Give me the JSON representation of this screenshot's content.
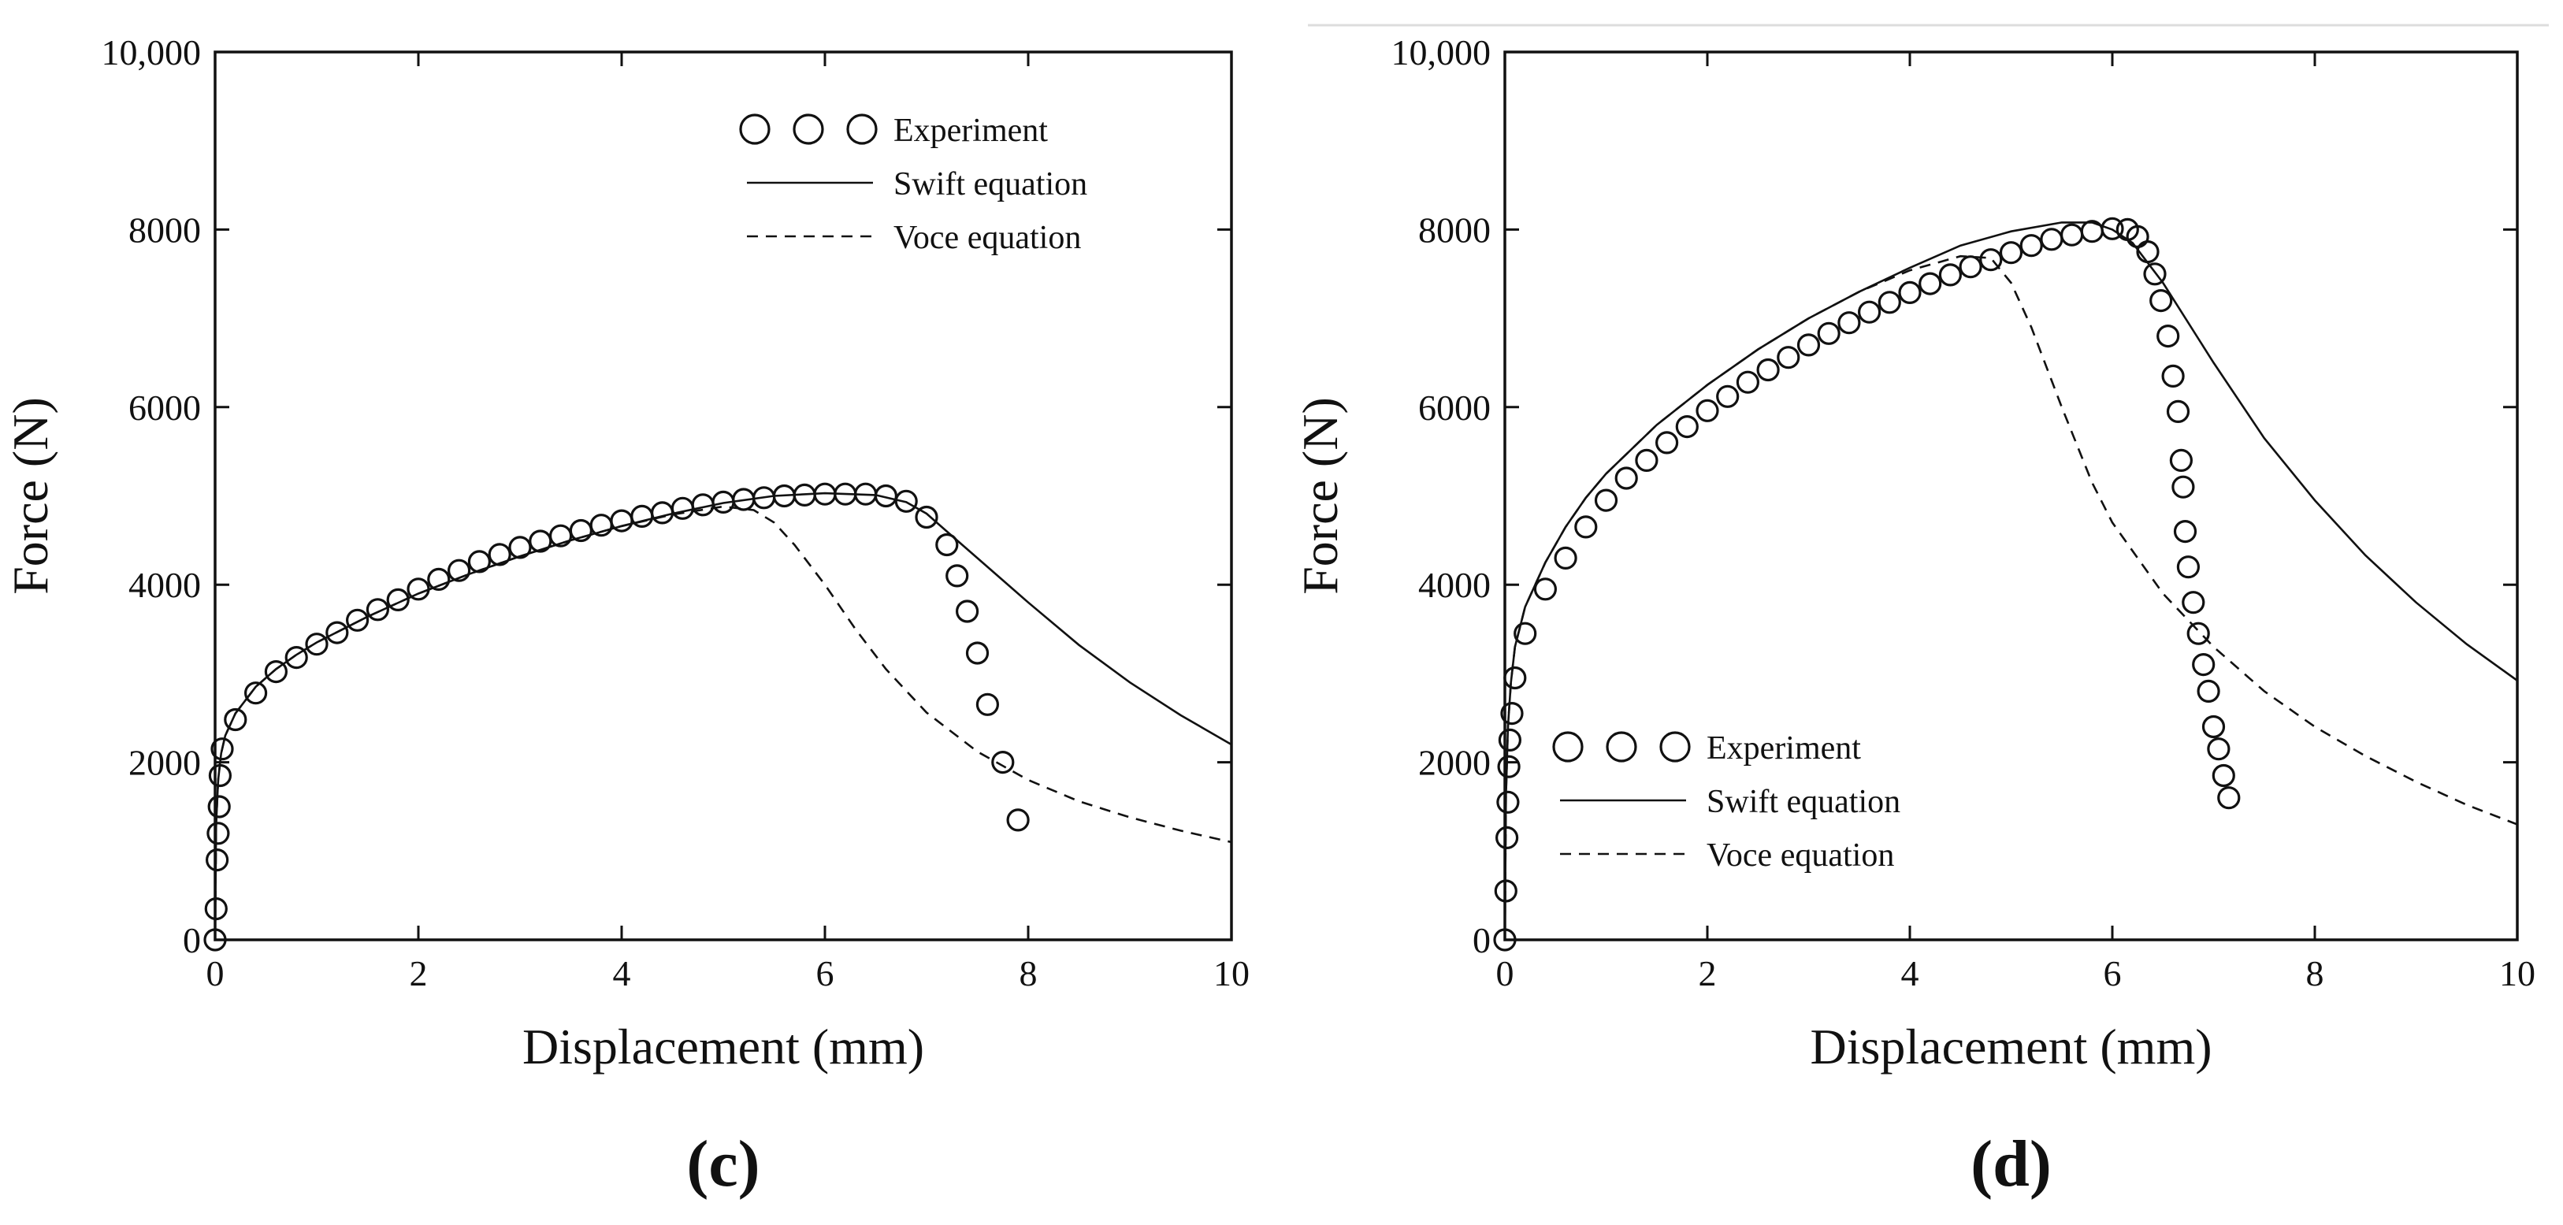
{
  "chart_data": [
    {
      "type": "line",
      "panel_label": "(c)",
      "xlabel": "Displacement (mm)",
      "ylabel": "Force (N)",
      "xlim": [
        0,
        10
      ],
      "ylim": [
        0,
        10000
      ],
      "x_ticks": [
        0,
        2,
        4,
        6,
        8,
        10
      ],
      "x_tick_labels": [
        "0",
        "2",
        "4",
        "6",
        "8",
        "10"
      ],
      "y_ticks": [
        0,
        2000,
        4000,
        6000,
        8000,
        10000
      ],
      "y_tick_labels": [
        "0",
        "2000",
        "4000",
        "6000",
        "8000",
        "10,000"
      ],
      "grid": false,
      "legend_position": "top-right",
      "series": [
        {
          "name": "Experiment",
          "style": "circles",
          "x": [
            0,
            0.01,
            0.02,
            0.03,
            0.04,
            0.05,
            0.07,
            0.2,
            0.4,
            0.6,
            0.8,
            1.0,
            1.2,
            1.4,
            1.6,
            1.8,
            2.0,
            2.2,
            2.4,
            2.6,
            2.8,
            3.0,
            3.2,
            3.4,
            3.6,
            3.8,
            4.0,
            4.2,
            4.4,
            4.6,
            4.8,
            5.0,
            5.2,
            5.4,
            5.6,
            5.8,
            6.0,
            6.2,
            6.4,
            6.6,
            6.8,
            7.0,
            7.2,
            7.3,
            7.4,
            7.5,
            7.6,
            7.75,
            7.9
          ],
          "y": [
            0,
            350,
            900,
            1200,
            1500,
            1850,
            2150,
            2480,
            2780,
            3020,
            3180,
            3330,
            3460,
            3600,
            3720,
            3830,
            3950,
            4060,
            4160,
            4260,
            4340,
            4420,
            4490,
            4550,
            4610,
            4670,
            4720,
            4770,
            4810,
            4860,
            4900,
            4930,
            4960,
            4980,
            5000,
            5010,
            5020,
            5020,
            5020,
            5000,
            4940,
            4760,
            4450,
            4100,
            3700,
            3230,
            2650,
            2000,
            1350
          ]
        },
        {
          "name": "Swift equation",
          "style": "solid",
          "x": [
            0,
            0.01,
            0.03,
            0.06,
            0.1,
            0.2,
            0.4,
            0.6,
            0.8,
            1.0,
            1.5,
            2.0,
            2.5,
            3.0,
            3.5,
            4.0,
            4.5,
            5.0,
            5.5,
            6.0,
            6.5,
            6.8,
            7.0,
            7.2,
            7.5,
            8.0,
            8.5,
            9.0,
            9.5,
            10.0
          ],
          "y": [
            0,
            1300,
            1800,
            2100,
            2300,
            2550,
            2850,
            3050,
            3210,
            3350,
            3640,
            3900,
            4120,
            4320,
            4500,
            4660,
            4800,
            4920,
            5000,
            5030,
            5010,
            4930,
            4800,
            4600,
            4300,
            3800,
            3320,
            2900,
            2530,
            2200
          ]
        },
        {
          "name": "Voce equation",
          "style": "dashed",
          "x": [
            0,
            0.01,
            0.03,
            0.06,
            0.1,
            0.2,
            0.4,
            0.6,
            0.8,
            1.0,
            1.5,
            2.0,
            2.5,
            3.0,
            3.5,
            4.0,
            4.5,
            5.0,
            5.3,
            5.5,
            5.7,
            6.0,
            6.3,
            6.6,
            7.0,
            7.5,
            8.0,
            8.5,
            9.0,
            9.5,
            10.0
          ],
          "y": [
            0,
            1300,
            1800,
            2100,
            2300,
            2550,
            2850,
            3050,
            3210,
            3350,
            3640,
            3900,
            4120,
            4320,
            4500,
            4660,
            4790,
            4880,
            4840,
            4700,
            4450,
            4000,
            3500,
            3050,
            2560,
            2120,
            1800,
            1560,
            1380,
            1230,
            1100
          ]
        }
      ]
    },
    {
      "type": "line",
      "panel_label": "(d)",
      "xlabel": "Displacement (mm)",
      "ylabel": "Force (N)",
      "xlim": [
        0,
        10
      ],
      "ylim": [
        0,
        10000
      ],
      "x_ticks": [
        0,
        2,
        4,
        6,
        8,
        10
      ],
      "x_tick_labels": [
        "0",
        "2",
        "4",
        "6",
        "8",
        "10"
      ],
      "y_ticks": [
        0,
        2000,
        4000,
        6000,
        8000,
        10000
      ],
      "y_tick_labels": [
        "0",
        "2000",
        "4000",
        "6000",
        "8000",
        "10,000"
      ],
      "grid": false,
      "legend_position": "bottom-left",
      "series": [
        {
          "name": "Experiment",
          "style": "circles",
          "x": [
            0,
            0.01,
            0.02,
            0.03,
            0.04,
            0.05,
            0.07,
            0.1,
            0.2,
            0.4,
            0.6,
            0.8,
            1.0,
            1.2,
            1.4,
            1.6,
            1.8,
            2.0,
            2.2,
            2.4,
            2.6,
            2.8,
            3.0,
            3.2,
            3.4,
            3.6,
            3.8,
            4.0,
            4.2,
            4.4,
            4.6,
            4.8,
            5.0,
            5.2,
            5.4,
            5.6,
            5.8,
            6.0,
            6.15,
            6.25,
            6.35,
            6.42,
            6.48,
            6.55,
            6.6,
            6.65,
            6.68,
            6.7,
            6.72,
            6.75,
            6.8,
            6.85,
            6.9,
            6.95,
            7.0,
            7.05,
            7.1,
            7.15
          ],
          "y": [
            0,
            550,
            1150,
            1550,
            1950,
            2250,
            2550,
            2950,
            3450,
            3950,
            4300,
            4650,
            4950,
            5200,
            5400,
            5600,
            5780,
            5960,
            6120,
            6280,
            6420,
            6560,
            6700,
            6830,
            6950,
            7070,
            7180,
            7290,
            7390,
            7490,
            7580,
            7660,
            7740,
            7820,
            7890,
            7940,
            7980,
            8010,
            8000,
            7920,
            7750,
            7500,
            7200,
            6800,
            6350,
            5950,
            5400,
            5100,
            4600,
            4200,
            3800,
            3450,
            3100,
            2800,
            2400,
            2150,
            1850,
            1600
          ]
        },
        {
          "name": "Swift equation",
          "style": "solid",
          "x": [
            0,
            0.01,
            0.03,
            0.06,
            0.1,
            0.2,
            0.4,
            0.6,
            0.8,
            1.0,
            1.5,
            2.0,
            2.5,
            3.0,
            3.5,
            4.0,
            4.5,
            5.0,
            5.5,
            5.8,
            6.0,
            6.2,
            6.5,
            7.0,
            7.5,
            8.0,
            8.5,
            9.0,
            9.5,
            10.0
          ],
          "y": [
            0,
            1600,
            2400,
            2900,
            3300,
            3750,
            4250,
            4650,
            4980,
            5250,
            5800,
            6250,
            6650,
            7000,
            7300,
            7570,
            7820,
            7980,
            8080,
            8080,
            8000,
            7850,
            7400,
            6500,
            5650,
            4950,
            4330,
            3800,
            3330,
            2920
          ]
        },
        {
          "name": "Voce equation",
          "style": "dashed",
          "x": [
            0,
            0.01,
            0.03,
            0.06,
            0.1,
            0.2,
            0.4,
            0.6,
            0.8,
            1.0,
            1.5,
            2.0,
            2.5,
            3.0,
            3.5,
            4.0,
            4.5,
            4.8,
            5.0,
            5.2,
            5.5,
            5.8,
            6.0,
            6.5,
            7.0,
            7.5,
            8.0,
            8.5,
            9.0,
            9.5,
            10.0
          ],
          "y": [
            0,
            1600,
            2400,
            2900,
            3300,
            3750,
            4250,
            4650,
            4980,
            5250,
            5800,
            6250,
            6650,
            7000,
            7300,
            7540,
            7700,
            7680,
            7400,
            6900,
            6000,
            5150,
            4700,
            3900,
            3300,
            2800,
            2400,
            2070,
            1780,
            1520,
            1300
          ]
        }
      ]
    }
  ]
}
